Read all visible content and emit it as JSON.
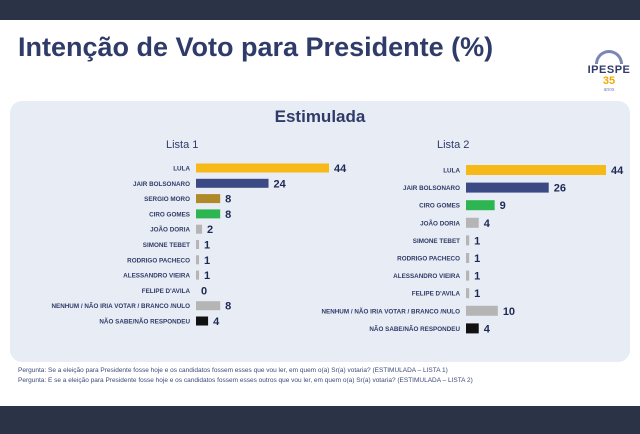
{
  "slide": {
    "title": "Intenção de Voto para Presidente (%)",
    "subtitle": "Estimulada",
    "logo": {
      "name": "IPESPE",
      "number": "35",
      "tagline": "anos"
    }
  },
  "colors": {
    "background": "#2b3447",
    "title": "#2f3b69",
    "panel": "#e8ecf4",
    "lula": "#f7b918",
    "bolsonaro": "#3b4a85",
    "moro": "#b08a2a",
    "ciro": "#2db551",
    "others": "#b5b5b5",
    "nao_sabe": "#111111"
  },
  "chart_data": [
    {
      "type": "bar",
      "orientation": "horizontal",
      "title": "Lista 1",
      "categories": [
        "LULA",
        "JAIR BOLSONARO",
        "SERGIO MORO",
        "CIRO GOMES",
        "JOÃO DORIA",
        "SIMONE TEBET",
        "RODRIGO PACHECO",
        "ALESSANDRO VIEIRA",
        "FELIPE D'AVILA",
        "NENHUM / NÃO IRIA VOTAR / BRANCO /NULO",
        "NÃO SABE/NÃO RESPONDEU"
      ],
      "values": [
        44,
        24,
        8,
        8,
        2,
        1,
        1,
        1,
        0,
        8,
        4
      ],
      "colors": [
        "#f7b918",
        "#3b4a85",
        "#b08a2a",
        "#2db551",
        "#b5b5b5",
        "#b5b5b5",
        "#b5b5b5",
        "#b5b5b5",
        "#b5b5b5",
        "#b5b5b5",
        "#111111"
      ],
      "xlim": [
        0,
        44
      ]
    },
    {
      "type": "bar",
      "orientation": "horizontal",
      "title": "Lista 2",
      "categories": [
        "LULA",
        "JAIR BOLSONARO",
        "CIRO GOMES",
        "JOÃO DORIA",
        "SIMONE TEBET",
        "RODRIGO PACHECO",
        "ALESSANDRO VIEIRA",
        "FELIPE D'AVILA",
        "NENHUM / NÃO IRIA VOTAR / BRANCO /NULO",
        "NÃO SABE/NÃO RESPONDEU"
      ],
      "values": [
        44,
        26,
        9,
        4,
        1,
        1,
        1,
        1,
        10,
        4
      ],
      "colors": [
        "#f7b918",
        "#3b4a85",
        "#2db551",
        "#b5b5b5",
        "#b5b5b5",
        "#b5b5b5",
        "#b5b5b5",
        "#b5b5b5",
        "#b5b5b5",
        "#111111"
      ],
      "xlim": [
        0,
        44
      ]
    }
  ],
  "notes": [
    "Pergunta:  Se a eleição para Presidente fosse hoje e os candidatos fossem esses que vou ler, em quem o(a) Sr(a) votaria? (ESTIMULADA – LISTA 1)",
    "Pergunta:  E se a eleição para Presidente fosse hoje e os candidatos fossem esses outros que vou ler, em quem o(a) Sr(a) votaria?  (ESTIMULADA – LISTA 2)"
  ]
}
